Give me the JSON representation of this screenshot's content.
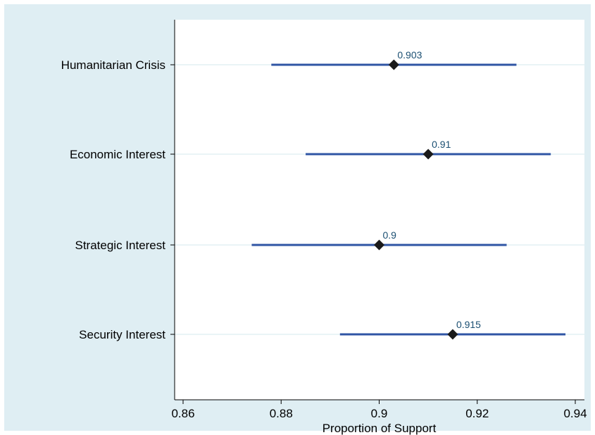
{
  "chart_data": {
    "type": "dot-interval",
    "orientation": "horizontal",
    "xlabel": "Proportion of Support",
    "xlim": [
      0.86,
      0.94
    ],
    "xticks": [
      0.86,
      0.88,
      0.9,
      0.92,
      0.94
    ],
    "xtick_labels": [
      "0.86",
      "0.88",
      "0.9",
      "0.92",
      "0.94"
    ],
    "categories": [
      "Humanitarian Crisis",
      "Economic Interest",
      "Strategic Interest",
      "Security Interest"
    ],
    "points": [
      {
        "category": "Humanitarian Crisis",
        "value": 0.903,
        "ci_low": 0.878,
        "ci_high": 0.928,
        "label": "0.903"
      },
      {
        "category": "Economic Interest",
        "value": 0.91,
        "ci_low": 0.885,
        "ci_high": 0.935,
        "label": "0.91"
      },
      {
        "category": "Strategic Interest",
        "value": 0.9,
        "ci_low": 0.874,
        "ci_high": 0.926,
        "label": "0.9"
      },
      {
        "category": "Security Interest",
        "value": 0.915,
        "ci_low": 0.892,
        "ci_high": 0.938,
        "label": "0.915"
      }
    ],
    "grid": true,
    "colors": {
      "outer_background": "#dfeef3",
      "plot_background": "#ffffff",
      "grid": "#d6e8ee",
      "interval": "#2f55a4",
      "marker": "#1a1a1a",
      "data_label": "#1b4f72"
    }
  }
}
